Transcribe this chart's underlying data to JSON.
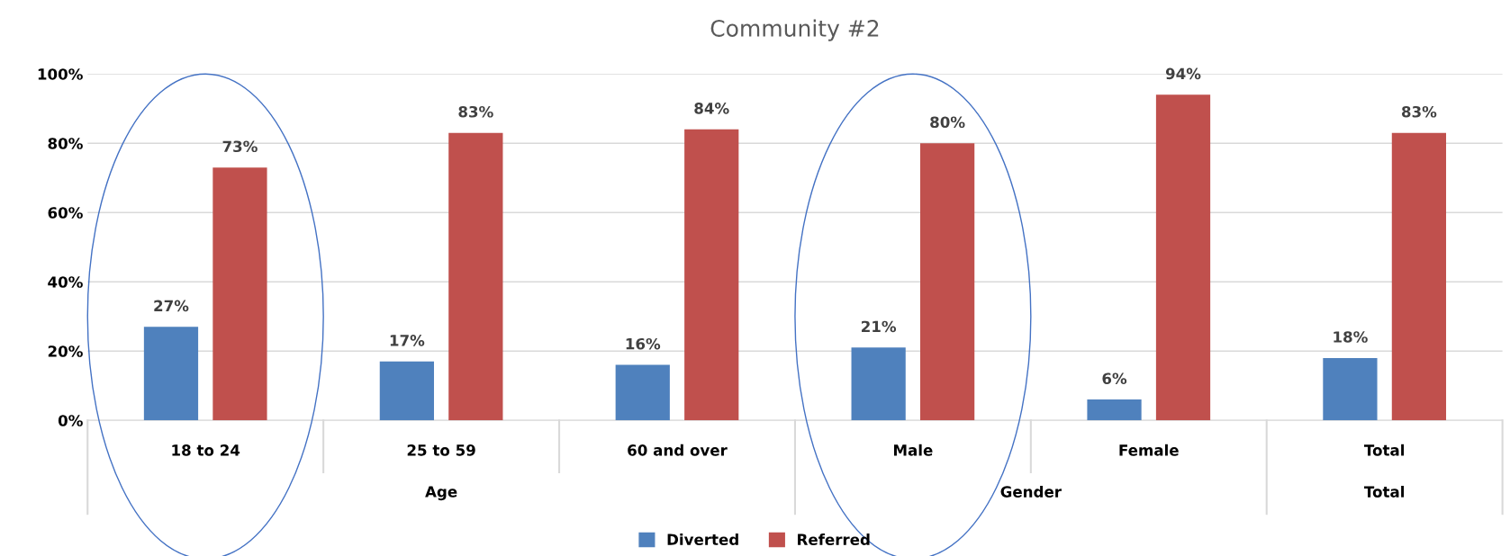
{
  "chart_data": {
    "type": "bar",
    "title": "Community #2",
    "categories": [
      "18 to 24",
      "25 to 59",
      "60 and over",
      "Male",
      "Female",
      "Total"
    ],
    "series": [
      {
        "name": "Diverted",
        "color": "#4f81bd",
        "values": [
          27,
          17,
          16,
          21,
          6,
          18
        ],
        "value_labels": [
          "27%",
          "17%",
          "16%",
          "21%",
          "6%",
          "18%"
        ]
      },
      {
        "name": "Referred",
        "color": "#c0504d",
        "values": [
          73,
          83,
          84,
          80,
          94,
          83
        ],
        "value_labels": [
          "73%",
          "83%",
          "84%",
          "80%",
          "94%",
          "83%"
        ]
      }
    ],
    "annotations": [
      "Age",
      "Gender",
      "Total"
    ],
    "ylim": [
      0,
      100
    ],
    "yticks": [
      {
        "value": 0,
        "label": "0%"
      },
      {
        "value": 20,
        "label": "20%"
      },
      {
        "value": 40,
        "label": "40%"
      },
      {
        "value": 60,
        "label": "60%"
      },
      {
        "value": 80,
        "label": "80%"
      },
      {
        "value": 100,
        "label": "100%"
      }
    ],
    "grid": "y",
    "legend": "bottom"
  }
}
